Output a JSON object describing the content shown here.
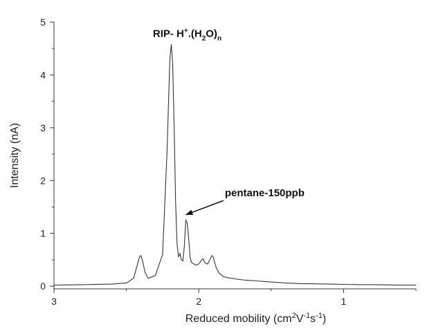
{
  "chart_data": {
    "type": "line",
    "title": "",
    "xlabel": {
      "base": "Reduced mobility (cm",
      "sup1": "2",
      "mid1": "V",
      "sup2": "-1",
      "mid2": "s",
      "sup3": "-1",
      "end": ")"
    },
    "ylabel": "Intensity (nA)",
    "xlim": [
      3.0,
      0.5
    ],
    "x_reversed": true,
    "ylim": [
      -0.05,
      5.0
    ],
    "x_ticks": [
      3,
      2,
      1
    ],
    "x_tick_labels": [
      "3",
      "2",
      "1"
    ],
    "y_ticks": [
      0,
      1,
      2,
      3,
      4,
      5
    ],
    "y_tick_labels": [
      "0",
      "1",
      "2",
      "3",
      "4",
      "5"
    ],
    "grid": false,
    "legend": "none",
    "line_color": "#333333",
    "series": [
      {
        "x": [
          3.0,
          2.8,
          2.6,
          2.5,
          2.45,
          2.43,
          2.41,
          2.4,
          2.39,
          2.37,
          2.35,
          2.3,
          2.25,
          2.22,
          2.2,
          2.19,
          2.18,
          2.17,
          2.16,
          2.15,
          2.14,
          2.13,
          2.12,
          2.11,
          2.1,
          2.09,
          2.08,
          2.07,
          2.06,
          2.05,
          2.02,
          2.0,
          1.98,
          1.97,
          1.96,
          1.94,
          1.92,
          1.91,
          1.9,
          1.89,
          1.88,
          1.86,
          1.83,
          1.8,
          1.75,
          1.7,
          1.65,
          1.6,
          1.55,
          1.5,
          1.45,
          1.4,
          1.3,
          1.2,
          1.1,
          1.0,
          0.9,
          0.8,
          0.7,
          0.6,
          0.5
        ],
        "y": [
          0.02,
          0.03,
          0.04,
          0.06,
          0.15,
          0.35,
          0.55,
          0.58,
          0.5,
          0.25,
          0.15,
          0.2,
          0.6,
          2.5,
          4.3,
          4.58,
          4.2,
          3.0,
          1.6,
          0.8,
          0.55,
          0.62,
          0.5,
          0.48,
          0.75,
          1.25,
          1.2,
          0.9,
          0.55,
          0.45,
          0.4,
          0.42,
          0.5,
          0.52,
          0.45,
          0.42,
          0.52,
          0.58,
          0.55,
          0.45,
          0.35,
          0.25,
          0.18,
          0.16,
          0.14,
          0.12,
          0.11,
          0.1,
          0.09,
          0.08,
          0.07,
          0.06,
          0.05,
          0.045,
          0.04,
          0.035,
          0.03,
          0.03,
          0.025,
          0.02,
          0.02
        ]
      }
    ],
    "annotations": [
      {
        "type": "peak-label",
        "parts": {
          "a": "RIP- H",
          "b": "+",
          "c": ".(H",
          "d": "2",
          "e": "O)",
          "f": "n"
        },
        "x": 2.08,
        "y": 4.72
      },
      {
        "type": "arrow-label",
        "text": "pentane-150ppb",
        "x": 1.82,
        "y": 1.7,
        "arrow_to_x": 2.1,
        "arrow_to_y": 1.3
      }
    ]
  }
}
